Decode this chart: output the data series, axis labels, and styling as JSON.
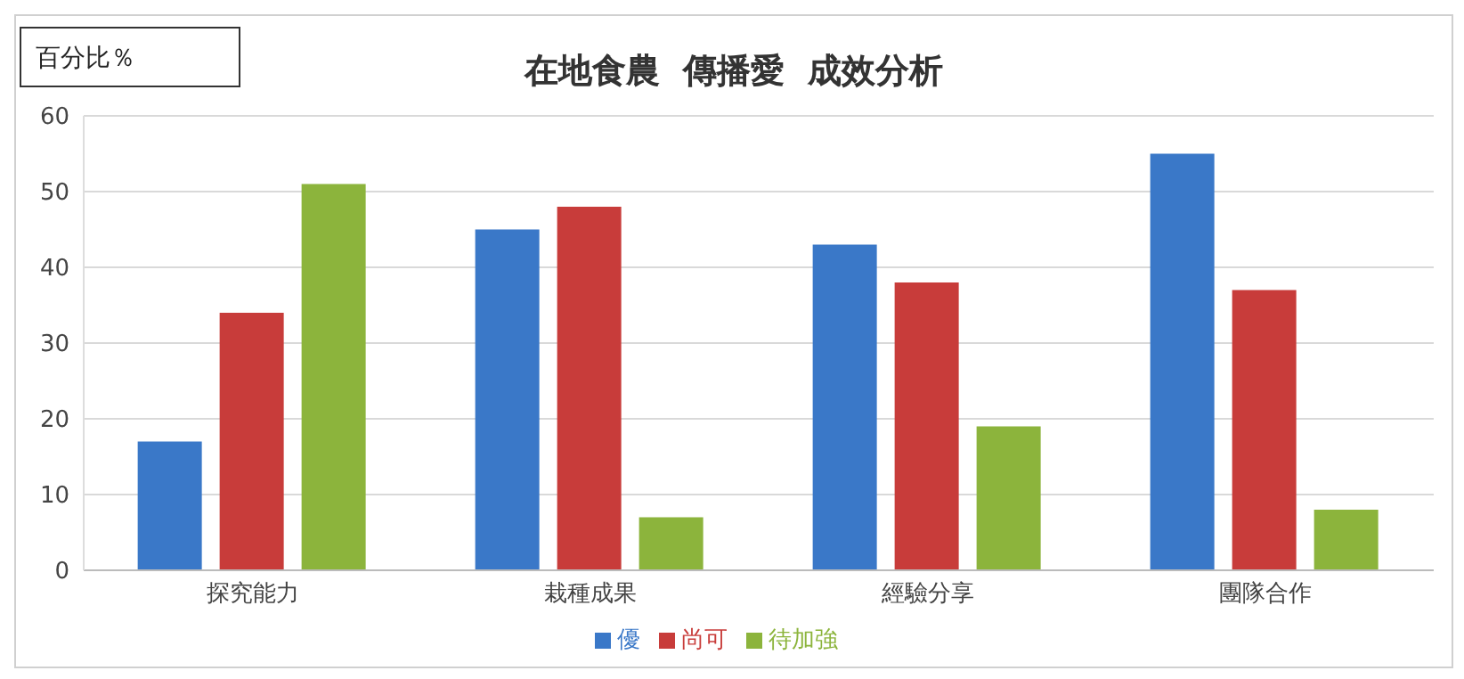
{
  "chart_data": {
    "type": "bar",
    "title": "在地食農  傳播愛  成效分析",
    "ylabel": "百分比％",
    "categories": [
      "探究能力",
      "栽種成果",
      "經驗分享",
      "團隊合作"
    ],
    "series": [
      {
        "name": "優",
        "color": "#3a78c8",
        "values": [
          17,
          45,
          43,
          55
        ]
      },
      {
        "name": "尚可",
        "color": "#c83c3a",
        "values": [
          34,
          48,
          38,
          37
        ]
      },
      {
        "name": "待加強",
        "color": "#8cb43c",
        "values": [
          51,
          7,
          19,
          8
        ]
      }
    ],
    "ylim": [
      0,
      60
    ],
    "yticks": [
      0,
      10,
      20,
      30,
      40,
      50,
      60
    ],
    "grid": "y",
    "legend": "bottom"
  }
}
